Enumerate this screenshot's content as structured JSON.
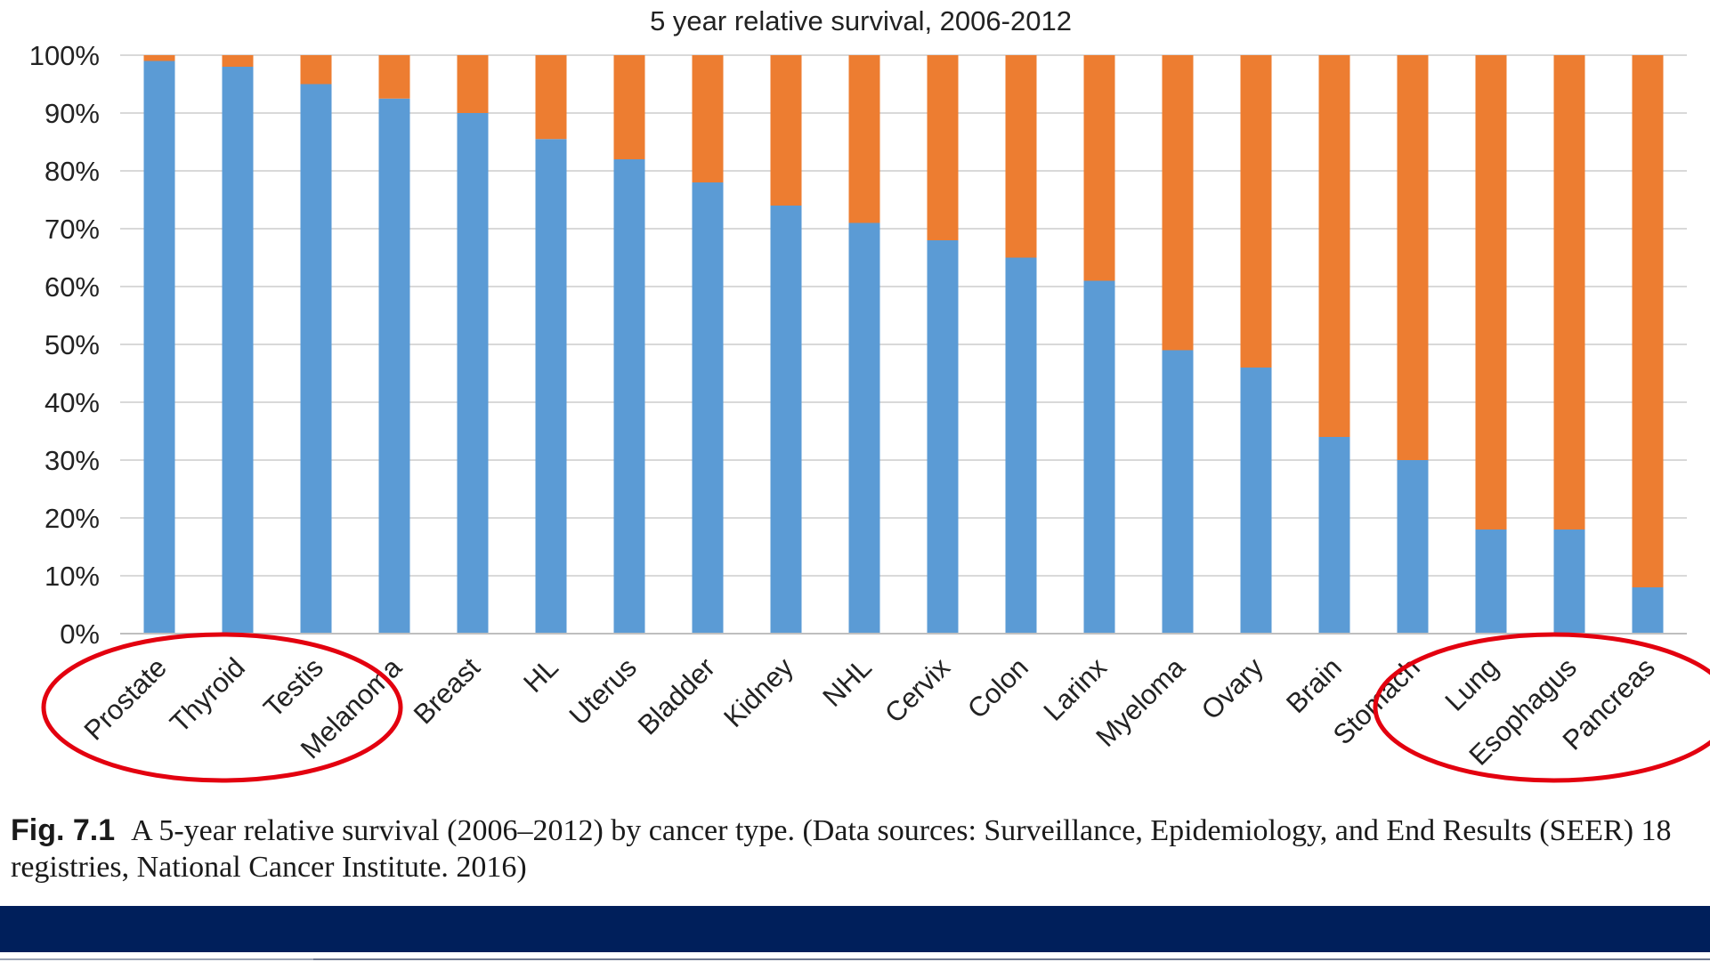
{
  "chart_data": {
    "type": "bar",
    "stacked": true,
    "title": "5 year relative survival, 2006-2012",
    "xlabel": "",
    "ylabel": "",
    "ylim": [
      0,
      100
    ],
    "yticks": [
      "0%",
      "10%",
      "20%",
      "30%",
      "40%",
      "50%",
      "60%",
      "70%",
      "80%",
      "90%",
      "100%"
    ],
    "grid": true,
    "legend": "none",
    "categories": [
      "Prostate",
      "Thyroid",
      "Testis",
      "Melanoma",
      "Breast",
      "HL",
      "Uterus",
      "Bladder",
      "Kidney",
      "NHL",
      "Cervix",
      "Colon",
      "Larinx",
      "Myeloma",
      "Ovary",
      "Brain",
      "Stomach",
      "Lung",
      "Esophagus",
      "Pancreas"
    ],
    "series": [
      {
        "color": "#5b9bd5",
        "values": [
          99,
          98,
          95,
          92.5,
          90,
          85.5,
          82,
          78,
          74,
          71,
          68,
          65,
          61,
          49,
          46,
          34,
          30,
          18,
          18,
          8
        ]
      },
      {
        "color": "#ed7d31",
        "values": [
          1,
          2,
          5,
          7.5,
          10,
          14.5,
          18,
          22,
          26,
          29,
          32,
          35,
          39,
          51,
          54,
          66,
          70,
          82,
          82,
          92
        ]
      }
    ],
    "highlights": [
      {
        "type": "ellipse",
        "color": "#e3000f",
        "categories": [
          "Prostate",
          "Thyroid",
          "Testis"
        ]
      },
      {
        "type": "ellipse",
        "color": "#e3000f",
        "categories": [
          "Lung",
          "Esophagus",
          "Pancreas"
        ]
      }
    ]
  },
  "caption": {
    "label": "Fig. 7.1",
    "text": "A 5-year relative survival (2006–2012) by cancer type. (Data sources: Surveillance, Epidemiology, and End Results (SEER) 18 registries, National Cancer Institute. 2016)"
  },
  "colors": {
    "grid": "#d9d9d9",
    "axis": "#bfbfbf",
    "text": "#222222",
    "footer": "#001f5b"
  }
}
